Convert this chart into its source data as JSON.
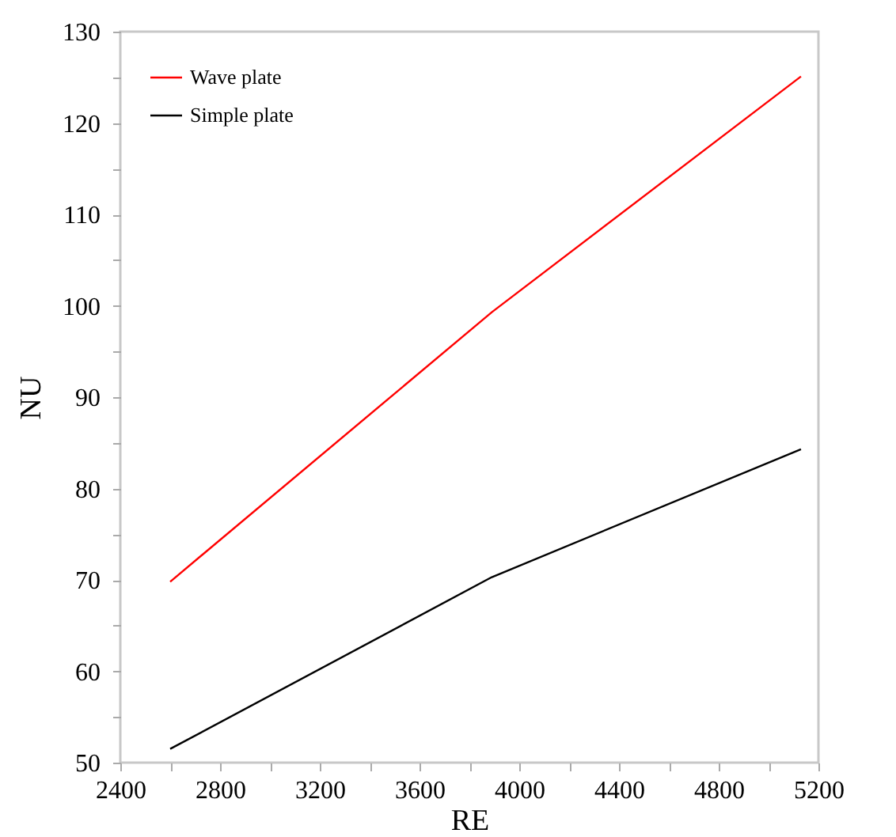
{
  "chart_data": {
    "type": "line",
    "xlabel": "RE",
    "ylabel": "NU",
    "x": [
      2600,
      3890,
      5130
    ],
    "series": [
      {
        "name": "Wave plate",
        "color": "#ff0000",
        "values": [
          69.8,
          99.3,
          125.1
        ]
      },
      {
        "name": "Simple plate",
        "color": "#000000",
        "values": [
          51.5,
          70.3,
          84.3
        ]
      }
    ],
    "xlim": [
      2400,
      5200
    ],
    "xticks": [
      2400,
      {
        "value": 2600,
        "label": null
      },
      2800,
      {
        "value": 3000,
        "label": null
      },
      3200,
      {
        "value": 3400,
        "label": null
      },
      3600,
      {
        "value": 3800,
        "label": null
      },
      4000,
      {
        "value": 4200,
        "label": null
      },
      4400,
      {
        "value": 4600,
        "label": null
      },
      4800,
      {
        "value": 5000,
        "label": null
      },
      5200
    ],
    "ylim": [
      50,
      130
    ],
    "yticks": [
      50,
      {
        "value": 55,
        "label": null
      },
      60,
      {
        "value": 65,
        "label": null
      },
      70,
      {
        "value": 75,
        "label": null
      },
      80,
      {
        "value": 85,
        "label": null
      },
      90,
      {
        "value": 95,
        "label": null
      },
      100,
      {
        "value": 105,
        "label": null
      },
      110,
      {
        "value": 115,
        "label": null
      },
      120,
      {
        "value": 125,
        "label": null
      },
      130
    ],
    "legend": "top left",
    "grid": false,
    "marker": "none",
    "line_style": "solid"
  }
}
